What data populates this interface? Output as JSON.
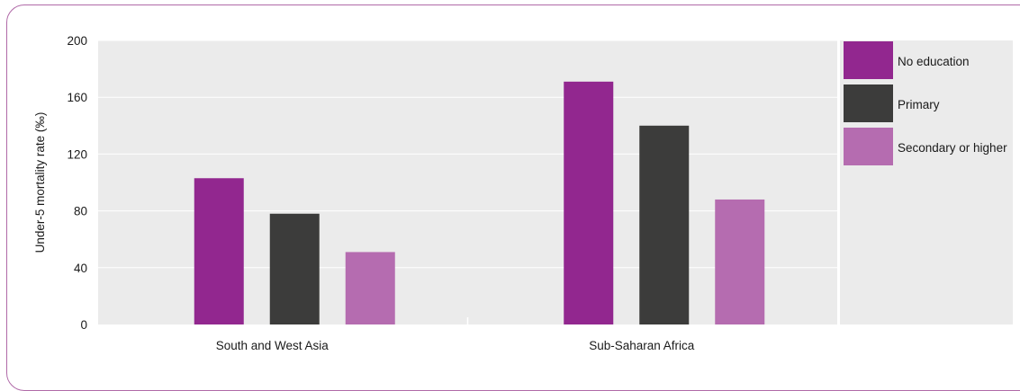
{
  "chart_data": {
    "type": "bar",
    "ylabel": "Under-5 mortality rate (‰)",
    "ylim": [
      0,
      200
    ],
    "yticks": [
      "0",
      "40",
      "80",
      "120",
      "160",
      "200"
    ],
    "categories": [
      "South and West Asia",
      "Sub-Saharan Africa"
    ],
    "series": [
      {
        "name": "No education",
        "values": [
          103,
          171
        ],
        "color": "#92278f"
      },
      {
        "name": "Primary",
        "values": [
          78,
          140
        ],
        "color": "#3c3c3b"
      },
      {
        "name": "Secondary or higher",
        "values": [
          51,
          88
        ],
        "color": "#b56cb0"
      }
    ],
    "plot_background": "#ebebeb",
    "grid": true,
    "legend_position": "right"
  }
}
